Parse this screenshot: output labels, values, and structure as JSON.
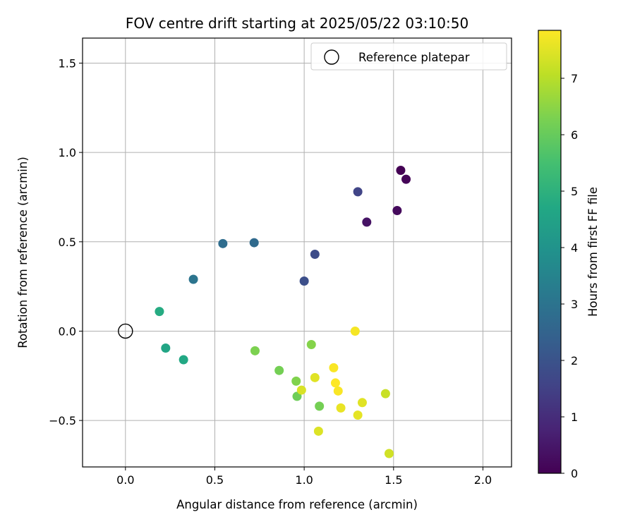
{
  "chart_data": {
    "type": "scatter",
    "title": "FOV centre drift starting at 2025/05/22 03:10:50",
    "xlabel": "Angular distance from reference (arcmin)",
    "ylabel": "Rotation from reference (arcmin)",
    "xlim": [
      -0.24,
      2.16
    ],
    "ylim": [
      -0.76,
      1.64
    ],
    "xticks": [
      0.0,
      0.5,
      1.0,
      1.5,
      2.0
    ],
    "xtick_labels": [
      "0.0",
      "0.5",
      "1.0",
      "1.5",
      "2.0"
    ],
    "yticks": [
      -0.5,
      0.0,
      0.5,
      1.0,
      1.5
    ],
    "ytick_labels": [
      "−0.5",
      "0.0",
      "0.5",
      "1.0",
      "1.5"
    ],
    "grid": true,
    "legend": {
      "placement": "top-right",
      "entries": [
        "Reference platepar"
      ]
    },
    "reference_point": {
      "x": 0.0,
      "y": 0.0,
      "label": "Reference platepar"
    },
    "colorbar": {
      "label": "Hours from first FF file",
      "colormap": "viridis",
      "min": 0,
      "max": 7.85,
      "ticks": [
        0,
        1,
        2,
        3,
        4,
        5,
        6,
        7
      ],
      "tick_labels": [
        "0",
        "1",
        "2",
        "3",
        "4",
        "5",
        "6",
        "7"
      ]
    },
    "points": [
      {
        "x": 1.54,
        "y": 0.9,
        "hours": 0.0
      },
      {
        "x": 1.57,
        "y": 0.85,
        "hours": 0.1
      },
      {
        "x": 1.52,
        "y": 0.675,
        "hours": 0.2
      },
      {
        "x": 1.35,
        "y": 0.61,
        "hours": 0.4
      },
      {
        "x": 1.3,
        "y": 0.78,
        "hours": 1.6
      },
      {
        "x": 1.06,
        "y": 0.43,
        "hours": 1.8
      },
      {
        "x": 1.0,
        "y": 0.28,
        "hours": 1.9
      },
      {
        "x": 0.72,
        "y": 0.495,
        "hours": 2.7
      },
      {
        "x": 0.545,
        "y": 0.49,
        "hours": 2.8
      },
      {
        "x": 0.38,
        "y": 0.29,
        "hours": 3.0
      },
      {
        "x": 0.19,
        "y": 0.11,
        "hours": 4.8
      },
      {
        "x": 0.225,
        "y": -0.095,
        "hours": 4.6
      },
      {
        "x": 0.325,
        "y": -0.16,
        "hours": 4.7
      },
      {
        "x": 0.725,
        "y": -0.11,
        "hours": 6.3
      },
      {
        "x": 0.86,
        "y": -0.22,
        "hours": 6.2
      },
      {
        "x": 0.955,
        "y": -0.28,
        "hours": 6.35
      },
      {
        "x": 0.96,
        "y": -0.365,
        "hours": 6.1
      },
      {
        "x": 1.04,
        "y": -0.075,
        "hours": 6.4
      },
      {
        "x": 1.085,
        "y": -0.42,
        "hours": 6.2
      },
      {
        "x": 0.985,
        "y": -0.33,
        "hours": 7.4
      },
      {
        "x": 1.06,
        "y": -0.26,
        "hours": 7.5
      },
      {
        "x": 1.08,
        "y": -0.56,
        "hours": 7.45
      },
      {
        "x": 1.165,
        "y": -0.205,
        "hours": 7.8
      },
      {
        "x": 1.175,
        "y": -0.29,
        "hours": 7.85
      },
      {
        "x": 1.19,
        "y": -0.335,
        "hours": 7.8
      },
      {
        "x": 1.205,
        "y": -0.43,
        "hours": 7.6
      },
      {
        "x": 1.285,
        "y": 0.0,
        "hours": 7.75
      },
      {
        "x": 1.3,
        "y": -0.47,
        "hours": 7.55
      },
      {
        "x": 1.325,
        "y": -0.4,
        "hours": 7.5
      },
      {
        "x": 1.455,
        "y": -0.35,
        "hours": 7.2
      },
      {
        "x": 1.475,
        "y": -0.685,
        "hours": 7.3
      }
    ]
  }
}
